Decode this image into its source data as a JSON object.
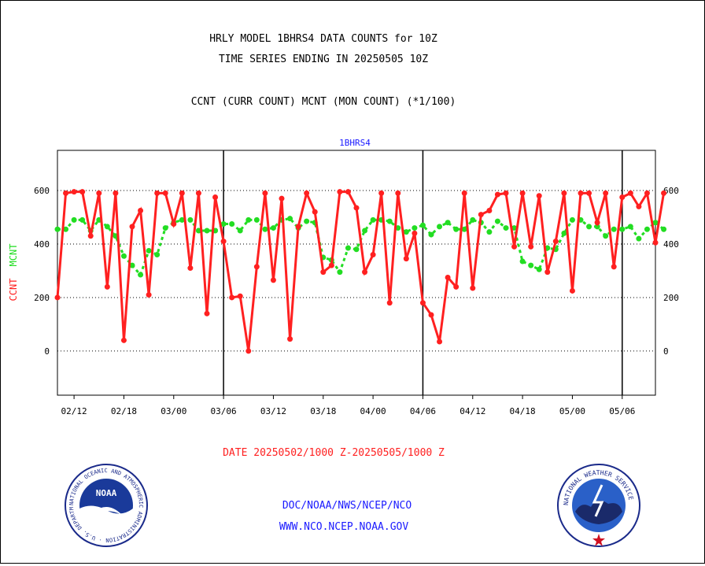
{
  "header": {
    "title_line1": "HRLY MODEL 1BHRS4 DATA COUNTS for 10Z",
    "title_line2": "TIME SERIES ENDING IN 20250505 10Z",
    "subtitle": "CCNT (CURR COUNT) MCNT (MON COUNT) (*1/100)"
  },
  "footer": {
    "date_range": "DATE 20250502/1000 Z-20250505/1000 Z",
    "org_line": "DOC/NOAA/NWS/NCEP/NCO",
    "url_line": "WWW.NCO.NCEP.NOAA.GOV",
    "noaa_logo_text": "NOAA",
    "noaa_ring_text": "NATIONAL OCEANIC AND ATMOSPHERIC ADMINISTRATION · U.S. DEPARTMENT OF COMMERCE",
    "nws_ring_text": "NATIONAL WEATHER SERVICE"
  },
  "colors": {
    "ccnt": "#ff2020",
    "mcnt": "#22dd22",
    "title": "#000000",
    "plot_label": "#1a1aff",
    "date_text": "#ff2020",
    "footer_text": "#1a1aff"
  },
  "chart_data": {
    "type": "line",
    "title": "1BHRS4",
    "ylabel_ccnt": "CCNT",
    "ylabel_mcnt": "MCNT",
    "ylim": [
      -165,
      750
    ],
    "yticks": [
      0,
      200,
      400,
      600
    ],
    "ytick_labels": [
      "0",
      "200",
      "400",
      "600"
    ],
    "grid": true,
    "xlim": [
      0,
      72
    ],
    "x_tick_positions": [
      2,
      8,
      14,
      20,
      26,
      32,
      38,
      44,
      50,
      56,
      62,
      68
    ],
    "x_tick_labels": [
      "02/12",
      "02/18",
      "03/00",
      "03/06",
      "03/12",
      "03/18",
      "04/00",
      "04/06",
      "04/12",
      "04/18",
      "05/00",
      "05/06"
    ],
    "day_dividers": [
      20,
      44,
      68
    ],
    "series": [
      {
        "name": "CCNT",
        "values": [
          200,
          590,
          595,
          595,
          430,
          590,
          240,
          590,
          40,
          465,
          525,
          210,
          590,
          590,
          475,
          590,
          310,
          590,
          140,
          575,
          410,
          200,
          205,
          0,
          315,
          590,
          265,
          570,
          45,
          465,
          590,
          520,
          295,
          320,
          595,
          595,
          535,
          295,
          360,
          590,
          180,
          590,
          345,
          440,
          180,
          135,
          35,
          275,
          240,
          590,
          235,
          510,
          525,
          585,
          590,
          390,
          590,
          390,
          580,
          295,
          410,
          590,
          225,
          590,
          590,
          480,
          590,
          315,
          575,
          590,
          540,
          590,
          405,
          590
        ]
      },
      {
        "name": "MCNT",
        "values": [
          455,
          455,
          490,
          490,
          450,
          490,
          465,
          430,
          355,
          320,
          285,
          375,
          360,
          460,
          480,
          490,
          490,
          450,
          450,
          450,
          475,
          475,
          450,
          490,
          490,
          455,
          460,
          490,
          495,
          460,
          485,
          480,
          350,
          340,
          295,
          385,
          380,
          450,
          490,
          490,
          485,
          460,
          445,
          460,
          470,
          435,
          465,
          480,
          455,
          455,
          490,
          480,
          445,
          485,
          460,
          460,
          335,
          320,
          305,
          385,
          380,
          440,
          490,
          490,
          465,
          465,
          430,
          455,
          455,
          465,
          420,
          455,
          480,
          455
        ]
      }
    ]
  }
}
